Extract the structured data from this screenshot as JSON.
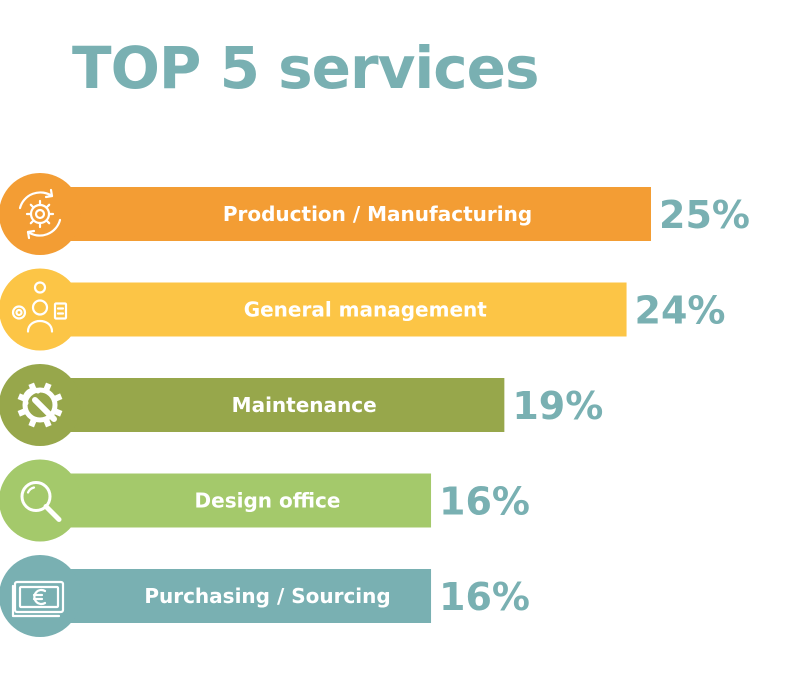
{
  "title": "TOP 5 services",
  "colors": {
    "title": "#79b0b2",
    "percent_text": "#79b0b2"
  },
  "chart_data": {
    "type": "bar",
    "orientation": "horizontal",
    "title": "TOP 5 services",
    "categories": [
      "Production / Manufacturing",
      "General management",
      "Maintenance",
      "Design office",
      "Purchasing / Sourcing"
    ],
    "values": [
      25,
      24,
      19,
      16,
      16
    ],
    "value_labels": [
      "25%",
      "24%",
      "19%",
      "16%",
      "16%"
    ],
    "unit": "%",
    "colors": [
      "#f39d34",
      "#fcc546",
      "#97a74b",
      "#a4c96b",
      "#79b0b2"
    ],
    "icons": [
      "gear-cycle-icon",
      "management-team-icon",
      "gear-wrench-icon",
      "magnifier-icon",
      "euro-banknote-icon"
    ],
    "legend": "none",
    "grid": false
  }
}
